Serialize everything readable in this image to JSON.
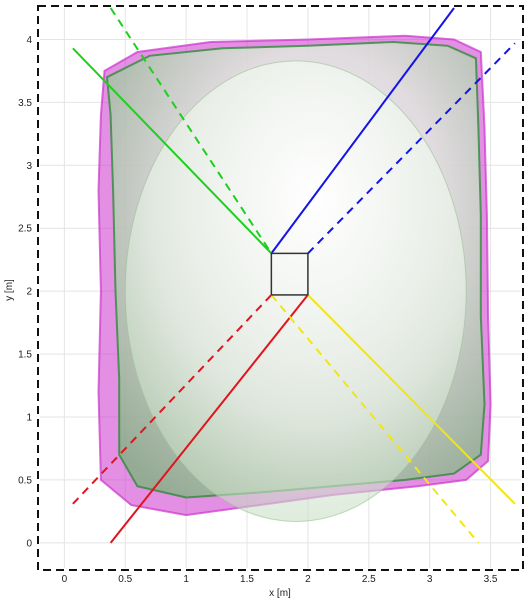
{
  "chart_data": {
    "type": "line",
    "title": "",
    "xlabel": "x [m]",
    "ylabel": "y [m]",
    "xlim": [
      -0.2,
      3.75
    ],
    "ylim": [
      -0.2,
      4.25
    ],
    "xticks": [
      0,
      0.5,
      1,
      1.5,
      2,
      2.5,
      3,
      3.5
    ],
    "yticks": [
      0,
      0.5,
      1,
      1.5,
      2,
      2.5,
      3,
      3.5,
      4
    ],
    "grid": true,
    "legend": "none",
    "colors": {
      "red": "#e0141e",
      "green": "#1ecf1e",
      "blue": "#1414e6",
      "yellow": "#f0e614",
      "magenta_surface": "#cc33cc",
      "green_surface": "#2e8b3a",
      "center_box": "#333333"
    },
    "series": [
      {
        "color": "red",
        "style": "solid",
        "x": [
          0.38,
          2.0
        ],
        "y": [
          0.0,
          1.97
        ]
      },
      {
        "color": "red",
        "style": "dashed",
        "x": [
          0.07,
          1.7
        ],
        "y": [
          0.31,
          1.97
        ]
      },
      {
        "color": "blue",
        "style": "solid",
        "x": [
          1.7,
          3.2
        ],
        "y": [
          2.3,
          4.25
        ]
      },
      {
        "color": "blue",
        "style": "dashed",
        "x": [
          2.0,
          3.7
        ],
        "y": [
          2.3,
          3.97
        ]
      },
      {
        "color": "green",
        "style": "solid",
        "x": [
          0.07,
          1.7
        ],
        "y": [
          3.93,
          2.3
        ]
      },
      {
        "color": "green",
        "style": "dashed",
        "x": [
          0.38,
          1.7
        ],
        "y": [
          4.25,
          2.3
        ]
      },
      {
        "color": "yellow",
        "style": "solid",
        "x": [
          2.0,
          3.7
        ],
        "y": [
          1.97,
          0.31
        ]
      },
      {
        "color": "yellow",
        "style": "dashed",
        "x": [
          1.7,
          3.4
        ],
        "y": [
          1.97,
          0.0
        ]
      }
    ],
    "center_box": {
      "x": [
        1.7,
        2.0
      ],
      "y": [
        1.97,
        2.3
      ]
    },
    "surfaces": {
      "magenta": [
        [
          0.33,
          3.75
        ],
        [
          0.6,
          3.9
        ],
        [
          1.2,
          3.98
        ],
        [
          2.0,
          4.0
        ],
        [
          2.8,
          4.03
        ],
        [
          3.2,
          4.0
        ],
        [
          3.42,
          3.9
        ],
        [
          3.45,
          3.3
        ],
        [
          3.47,
          2.6
        ],
        [
          3.48,
          1.8
        ],
        [
          3.5,
          1.1
        ],
        [
          3.48,
          0.65
        ],
        [
          3.3,
          0.5
        ],
        [
          2.9,
          0.45
        ],
        [
          2.2,
          0.38
        ],
        [
          1.6,
          0.3
        ],
        [
          1.0,
          0.22
        ],
        [
          0.55,
          0.3
        ],
        [
          0.3,
          0.5
        ],
        [
          0.28,
          1.2
        ],
        [
          0.3,
          2.0
        ],
        [
          0.28,
          2.8
        ],
        [
          0.3,
          3.4
        ]
      ],
      "green_outer": [
        [
          0.35,
          3.7
        ],
        [
          0.7,
          3.87
        ],
        [
          1.3,
          3.93
        ],
        [
          2.0,
          3.95
        ],
        [
          2.7,
          3.98
        ],
        [
          3.15,
          3.95
        ],
        [
          3.38,
          3.85
        ],
        [
          3.4,
          3.3
        ],
        [
          3.42,
          2.6
        ],
        [
          3.42,
          1.8
        ],
        [
          3.45,
          1.1
        ],
        [
          3.42,
          0.7
        ],
        [
          3.2,
          0.55
        ],
        [
          2.8,
          0.5
        ],
        [
          2.2,
          0.45
        ],
        [
          1.6,
          0.4
        ],
        [
          1.0,
          0.36
        ],
        [
          0.6,
          0.45
        ],
        [
          0.45,
          0.7
        ],
        [
          0.45,
          1.3
        ],
        [
          0.42,
          2.0
        ],
        [
          0.4,
          2.8
        ],
        [
          0.38,
          3.4
        ]
      ],
      "ellipse": {
        "cx": 1.9,
        "cy": 2.0,
        "rx": 1.4,
        "ry": 1.83
      }
    }
  }
}
